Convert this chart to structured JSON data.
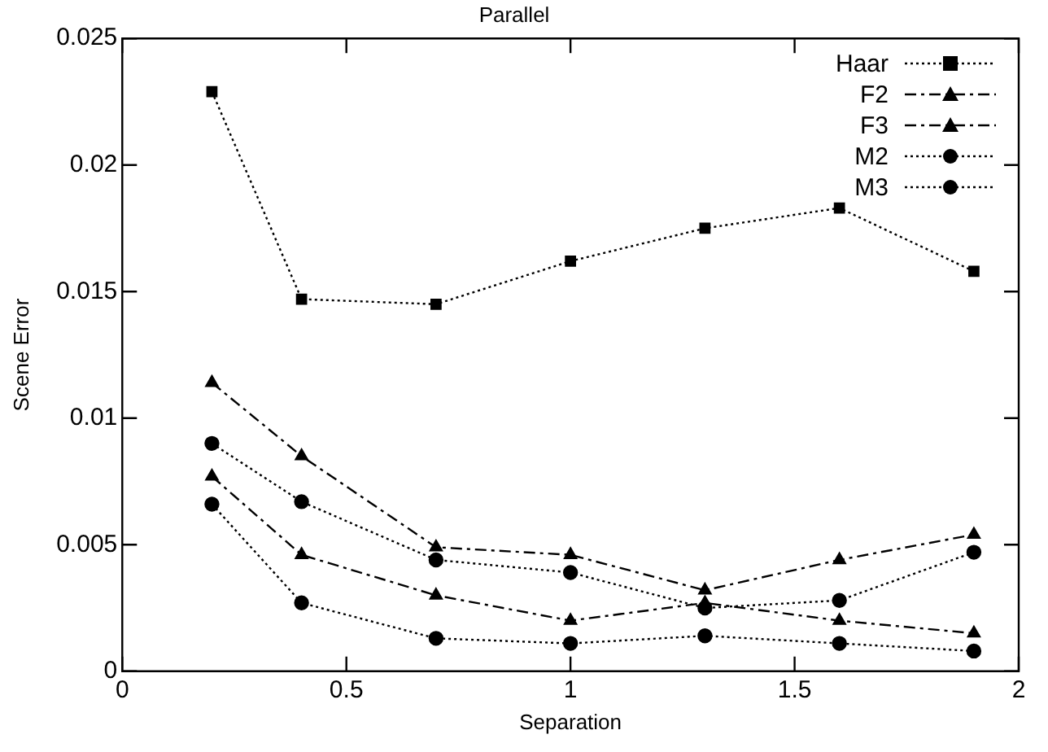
{
  "chart_data": {
    "type": "line",
    "title": "Parallel",
    "xlabel": "Separation",
    "ylabel": "Scene Error",
    "x": [
      0.2,
      0.4,
      0.7,
      1.0,
      1.3,
      1.6,
      1.9
    ],
    "series": [
      {
        "name": "Haar",
        "color": "#000000",
        "marker": "square",
        "line_style": "dotted",
        "values": [
          0.0229,
          0.0147,
          0.0145,
          0.0162,
          0.0175,
          0.0183,
          0.0158
        ]
      },
      {
        "name": "F2",
        "color": "#000000",
        "marker": "triangle",
        "line_style": "dashed",
        "values": [
          0.0114,
          0.0085,
          0.0049,
          0.0046,
          0.0032,
          0.0044,
          0.0054
        ]
      },
      {
        "name": "F3",
        "color": "#000000",
        "marker": "triangle",
        "line_style": "dashed",
        "values": [
          0.0077,
          0.0046,
          0.003,
          0.002,
          0.0027,
          0.002,
          0.0015
        ]
      },
      {
        "name": "M2",
        "color": "#000000",
        "marker": "circle",
        "line_style": "dotted",
        "values": [
          0.009,
          0.0067,
          0.0044,
          0.0039,
          0.0025,
          0.0028,
          0.0047
        ]
      },
      {
        "name": "M3",
        "color": "#000000",
        "marker": "circle",
        "line_style": "dotted",
        "values": [
          0.0066,
          0.0027,
          0.0013,
          0.0011,
          0.0014,
          0.0011,
          0.0008
        ]
      }
    ],
    "xlim": [
      0,
      2
    ],
    "xticks": [
      0,
      0.5,
      1,
      1.5,
      2
    ],
    "ylim": [
      0,
      0.025
    ],
    "yticks": [
      0,
      0.005,
      0.01,
      0.015,
      0.02,
      0.025
    ],
    "grid": false,
    "legend": "top right"
  }
}
